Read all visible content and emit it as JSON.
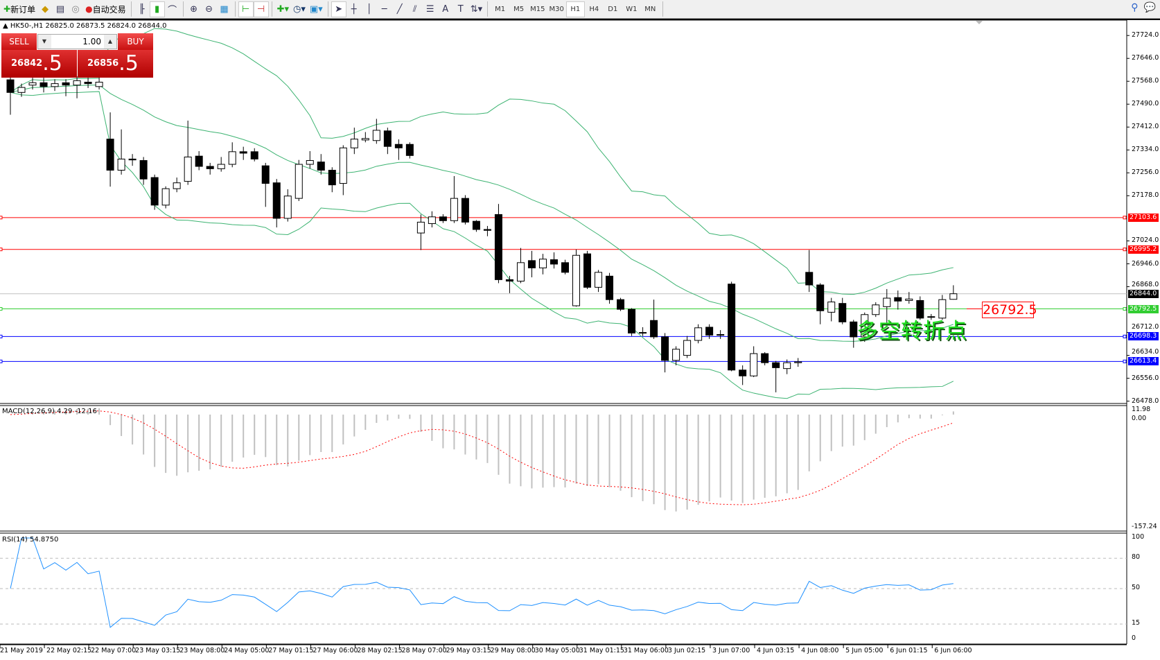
{
  "toolbar": {
    "new_order": "新订单",
    "auto_trading": "自动交易",
    "icons": [
      "new-order-icon",
      "market-watch-icon",
      "navigator-icon",
      "signals-icon",
      "auto-trading-icon",
      "bar-chart-icon",
      "candlestick-icon",
      "line-chart-icon",
      "zoom-in-icon",
      "zoom-out-icon",
      "tile-windows-icon",
      "chart-shift-icon",
      "autoscroll-icon",
      "indicators-icon",
      "periods-icon",
      "templates-icon",
      "cursor-icon",
      "crosshair-icon",
      "vertical-line-icon",
      "horizontal-line-icon",
      "trendline-icon",
      "equidistant-channel-icon",
      "fibonacci-icon",
      "text-icon",
      "text-label-icon",
      "arrows-icon"
    ],
    "timeframes": [
      "M1",
      "M5",
      "M15",
      "M30",
      "H1",
      "H4",
      "D1",
      "W1",
      "MN"
    ],
    "active_timeframe": "H1"
  },
  "chart": {
    "header": "HK50-,H1  26825.0 26873.5 26824.0 26844.0",
    "trade_panel": {
      "sell_label": "SELL",
      "buy_label": "BUY",
      "lot": "1.00",
      "sell_main": "26842",
      "sell_frac": ".5",
      "buy_main": "26856",
      "buy_frac": ".5"
    },
    "annotation": "多空转折点",
    "annotation_price": "26792.5",
    "price_axis": [
      "27724.0",
      "27646.0",
      "27568.0",
      "27490.0",
      "27412.0",
      "27334.0",
      "27256.0",
      "27178.0",
      "27024.0",
      "26946.0",
      "26868.0",
      "26712.0",
      "26634.0",
      "26556.0",
      "26478.0"
    ],
    "lines": [
      {
        "price": 27103.6,
        "label": "27103.6",
        "color": "#ff0000"
      },
      {
        "price": 26995.2,
        "label": "26995.2",
        "color": "#ff0000"
      },
      {
        "price": 26844.0,
        "label": "26844.0",
        "color": "#c0c0c0",
        "tag": "#000000"
      },
      {
        "price": 26792.5,
        "label": "26792.5",
        "color": "#32cd32"
      },
      {
        "price": 26698.3,
        "label": "26698.3",
        "color": "#0000ff"
      },
      {
        "price": 26613.4,
        "label": "26613.4",
        "color": "#0000ff"
      }
    ],
    "macd": {
      "label": "MACD(12,26,9) 4.29 -12.16",
      "max": "11.98",
      "zero": "0.00",
      "min": "-157.24"
    },
    "rsi": {
      "label": "RSI(14) 54.8750",
      "levels": [
        "100",
        "80",
        "50",
        "15",
        "0"
      ]
    },
    "time_axis": [
      "21 May 2019",
      "22 May 02:15",
      "22 May 07:00",
      "23 May 03:15",
      "23 May 08:00",
      "24 May 05:00",
      "27 May 01:15",
      "27 May 06:00",
      "28 May 02:15",
      "28 May 07:00",
      "29 May 03:15",
      "29 May 08:00",
      "30 May 05:00",
      "31 May 01:15",
      "31 May 06:00",
      "3 Jun 02:15",
      "3 Jun 07:00",
      "4 Jun 03:15",
      "4 Jun 08:00",
      "5 Jun 05:00",
      "6 Jun 01:15",
      "6 Jun 06:00"
    ]
  },
  "chart_data": {
    "type": "candlestick",
    "symbol": "HK50-",
    "timeframe": "H1",
    "ylim": [
      26478,
      27724
    ],
    "indicators": [
      "Bollinger Bands",
      "MACD(12,26,9)",
      "RSI(14)"
    ],
    "colors": {
      "bands": "#3cb371",
      "macd_hist": "#c0c0c0",
      "macd_signal": "#ff0000",
      "rsi": "#1e90ff"
    },
    "ohlc": [
      [
        27573,
        27590,
        27454,
        27530
      ],
      [
        27530,
        27560,
        27515,
        27547
      ],
      [
        27555,
        27580,
        27540,
        27563
      ],
      [
        27563,
        27580,
        27530,
        27550
      ],
      [
        27550,
        27575,
        27535,
        27560
      ],
      [
        27563,
        27575,
        27517,
        27555
      ],
      [
        27555,
        27585,
        27510,
        27570
      ],
      [
        27565,
        27580,
        27545,
        27560
      ],
      [
        27550,
        27580,
        27540,
        27565
      ],
      [
        27371,
        27462,
        27209,
        27265
      ],
      [
        27265,
        27404,
        27250,
        27303
      ],
      [
        27303,
        27320,
        27280,
        27300
      ],
      [
        27298,
        27310,
        27215,
        27235
      ],
      [
        27240,
        27250,
        27130,
        27146
      ],
      [
        27146,
        27210,
        27135,
        27202
      ],
      [
        27202,
        27240,
        27190,
        27222
      ],
      [
        27227,
        27434,
        27215,
        27310
      ],
      [
        27313,
        27330,
        27265,
        27278
      ],
      [
        27278,
        27290,
        27250,
        27270
      ],
      [
        27270,
        27310,
        27260,
        27285
      ],
      [
        27285,
        27360,
        27275,
        27328
      ],
      [
        27328,
        27345,
        27300,
        27323
      ],
      [
        27328,
        27340,
        27295,
        27303
      ],
      [
        27280,
        27290,
        27140,
        27220
      ],
      [
        27222,
        27235,
        27070,
        27101
      ],
      [
        27101,
        27200,
        27090,
        27177
      ],
      [
        27169,
        27300,
        27160,
        27285
      ],
      [
        27285,
        27330,
        27270,
        27298
      ],
      [
        27293,
        27320,
        27250,
        27265
      ],
      [
        27265,
        27275,
        27190,
        27215
      ],
      [
        27220,
        27350,
        27180,
        27341
      ],
      [
        27341,
        27410,
        27320,
        27371
      ],
      [
        27368,
        27395,
        27360,
        27373
      ],
      [
        27366,
        27440,
        27355,
        27401
      ],
      [
        27399,
        27410,
        27320,
        27346
      ],
      [
        27353,
        27370,
        27300,
        27341
      ],
      [
        27353,
        27360,
        27305,
        27315
      ],
      [
        27051,
        27114,
        26993,
        27088
      ],
      [
        27083,
        27125,
        27070,
        27106
      ],
      [
        27106,
        27115,
        27085,
        27093
      ],
      [
        27093,
        27245,
        27085,
        27169
      ],
      [
        27169,
        27180,
        27080,
        27088
      ],
      [
        27091,
        27095,
        27055,
        27063
      ],
      [
        27063,
        27075,
        27040,
        27060
      ],
      [
        27114,
        27150,
        26880,
        26892
      ],
      [
        26892,
        26905,
        26846,
        26887
      ],
      [
        26887,
        27000,
        26880,
        26950
      ],
      [
        26957,
        26990,
        26900,
        26932
      ],
      [
        26932,
        26980,
        26910,
        26962
      ],
      [
        26960,
        26985,
        26930,
        26945
      ],
      [
        26950,
        26960,
        26910,
        26917
      ],
      [
        26803,
        26995,
        26800,
        26975
      ],
      [
        26980,
        26990,
        26860,
        26866
      ],
      [
        26866,
        26925,
        26850,
        26917
      ],
      [
        26904,
        26915,
        26810,
        26824
      ],
      [
        26824,
        26830,
        26785,
        26791
      ],
      [
        26791,
        26795,
        26700,
        26710
      ],
      [
        26710,
        26730,
        26700,
        26712
      ],
      [
        26753,
        26824,
        26690,
        26697
      ],
      [
        26697,
        26710,
        26576,
        26617
      ],
      [
        26617,
        26665,
        26600,
        26655
      ],
      [
        26634,
        26700,
        26625,
        26685
      ],
      [
        26685,
        26740,
        26675,
        26728
      ],
      [
        26730,
        26740,
        26690,
        26703
      ],
      [
        26703,
        26720,
        26690,
        26705
      ],
      [
        26877,
        26885,
        26580,
        26584
      ],
      [
        26584,
        26600,
        26533,
        26564
      ],
      [
        26564,
        26665,
        26560,
        26640
      ],
      [
        26640,
        26645,
        26600,
        26609
      ],
      [
        26609,
        26615,
        26508,
        26592
      ],
      [
        26589,
        26620,
        26570,
        26609
      ],
      [
        26609,
        26625,
        26595,
        26612
      ],
      [
        26917,
        26993,
        26850,
        26874
      ],
      [
        26874,
        26880,
        26740,
        26786
      ],
      [
        26781,
        26830,
        26750,
        26816
      ],
      [
        26811,
        26830,
        26740,
        26748
      ],
      [
        26748,
        26755,
        26660,
        26697
      ],
      [
        26697,
        26780,
        26680,
        26773
      ],
      [
        26773,
        26815,
        26765,
        26806
      ],
      [
        26800,
        26860,
        26740,
        26829
      ],
      [
        26831,
        26855,
        26790,
        26819
      ],
      [
        26821,
        26850,
        26810,
        26826
      ],
      [
        26821,
        26835,
        26755,
        26761
      ],
      [
        26766,
        26775,
        26755,
        26765
      ],
      [
        26761,
        26840,
        26755,
        26824
      ],
      [
        26825,
        26873,
        26824,
        26844
      ]
    ]
  }
}
